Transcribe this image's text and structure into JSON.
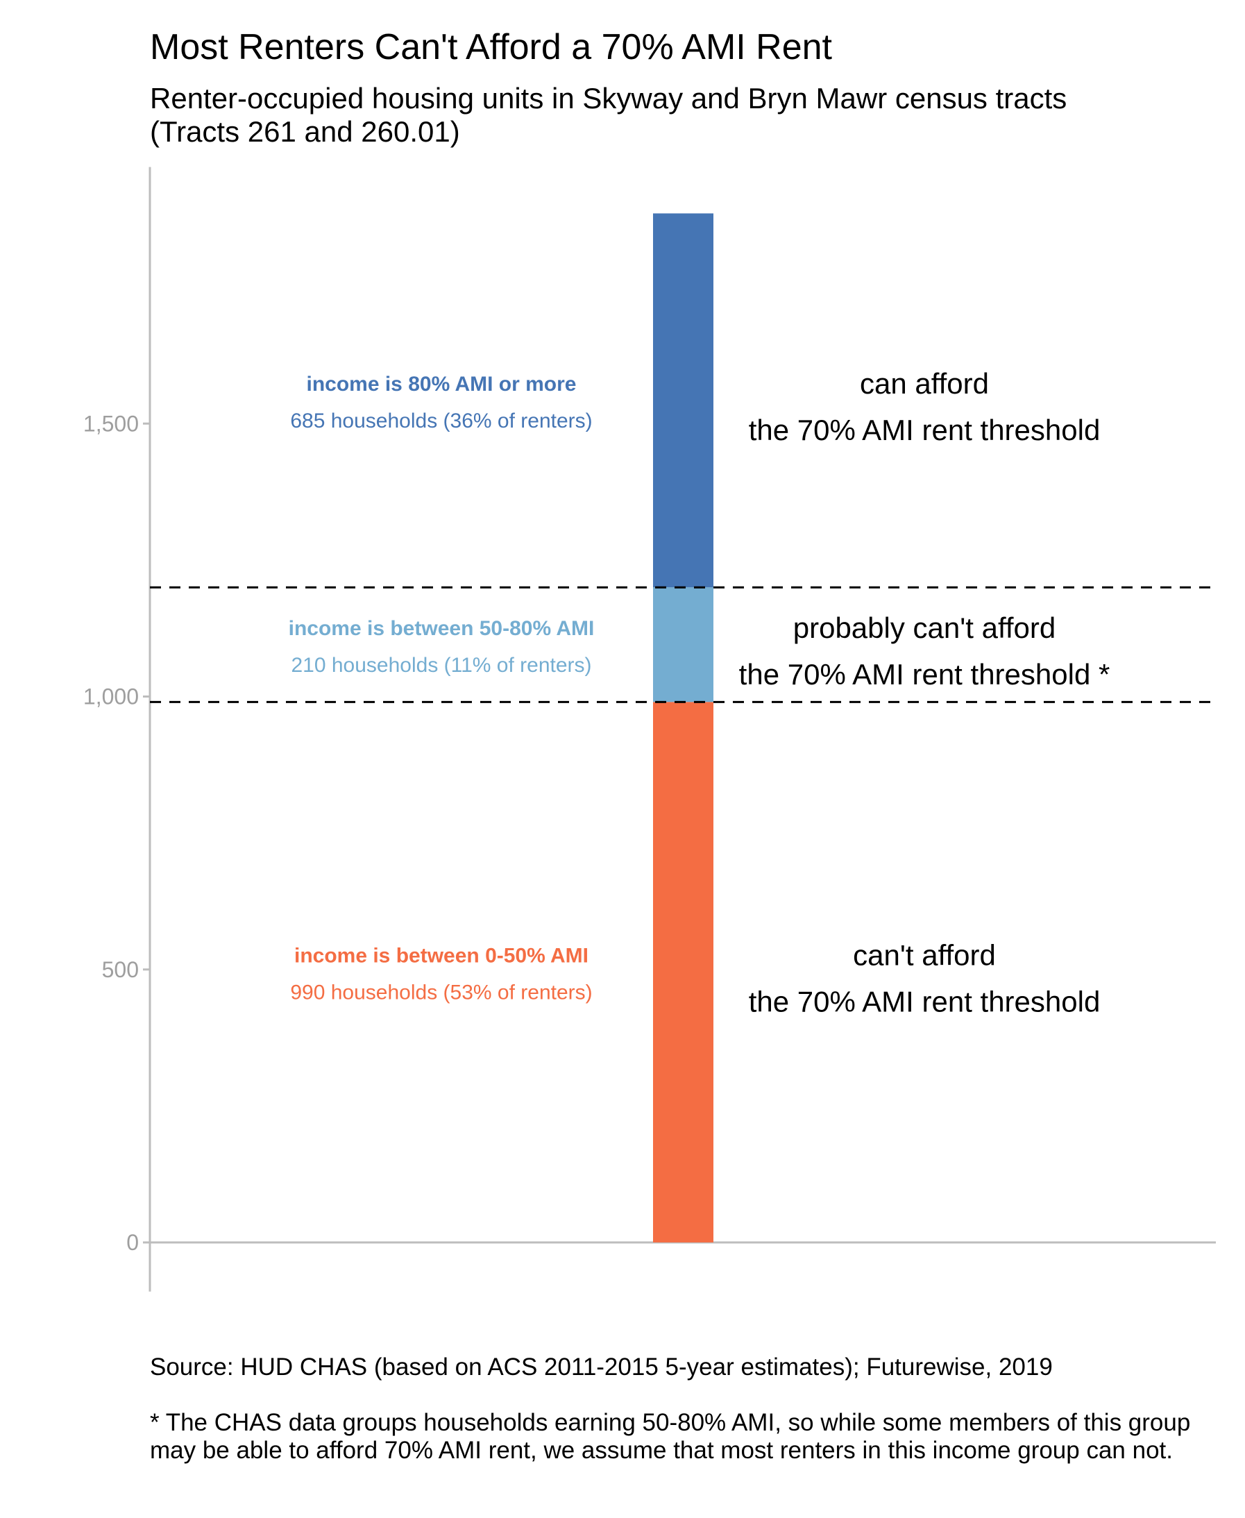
{
  "chart_data": {
    "type": "bar",
    "title": "Most Renters Can't Afford a 70% AMI Rent",
    "subtitle_lines": [
      "Renter-occupied housing units in Skyway and Bryn Mawr census tracts",
      "(Tracts 261 and 260.01)"
    ],
    "stacked": true,
    "ylim": [
      -90,
      1970
    ],
    "yticks": [
      0,
      500,
      1000,
      1500
    ],
    "ytick_labels": [
      "0",
      "500",
      "1,000",
      "1,500"
    ],
    "grid": false,
    "series": [
      {
        "name": "income is between 0-50% AMI",
        "value": 990,
        "label": "990 households (53% of renters)",
        "color": "#F46D43",
        "afford_lines": [
          "can't afford",
          "the 70% AMI rent threshold"
        ]
      },
      {
        "name": "income is between 50-80% AMI",
        "value": 210,
        "label": "210 households (11% of renters)",
        "color": "#74ADD1",
        "afford_lines": [
          "probably can't afford",
          "the 70% AMI rent threshold *"
        ]
      },
      {
        "name": "income is 80% AMI or more",
        "value": 685,
        "label": "685 households (36% of renters)",
        "color": "#4575B4",
        "afford_lines": [
          "can afford",
          "the 70% AMI rent threshold"
        ]
      }
    ],
    "reference_lines": [
      990,
      1200
    ],
    "axis_color": "#BDBDBD",
    "tick_label_color": "#9E9E9E"
  },
  "source": "Source: HUD CHAS (based on ACS 2011-2015 5-year estimates); Futurewise, 2019",
  "footnote": "* The CHAS data groups households earning 50-80% AMI, so while some members of this group may be able to afford 70% AMI rent, we assume that most renters in this income group can not."
}
